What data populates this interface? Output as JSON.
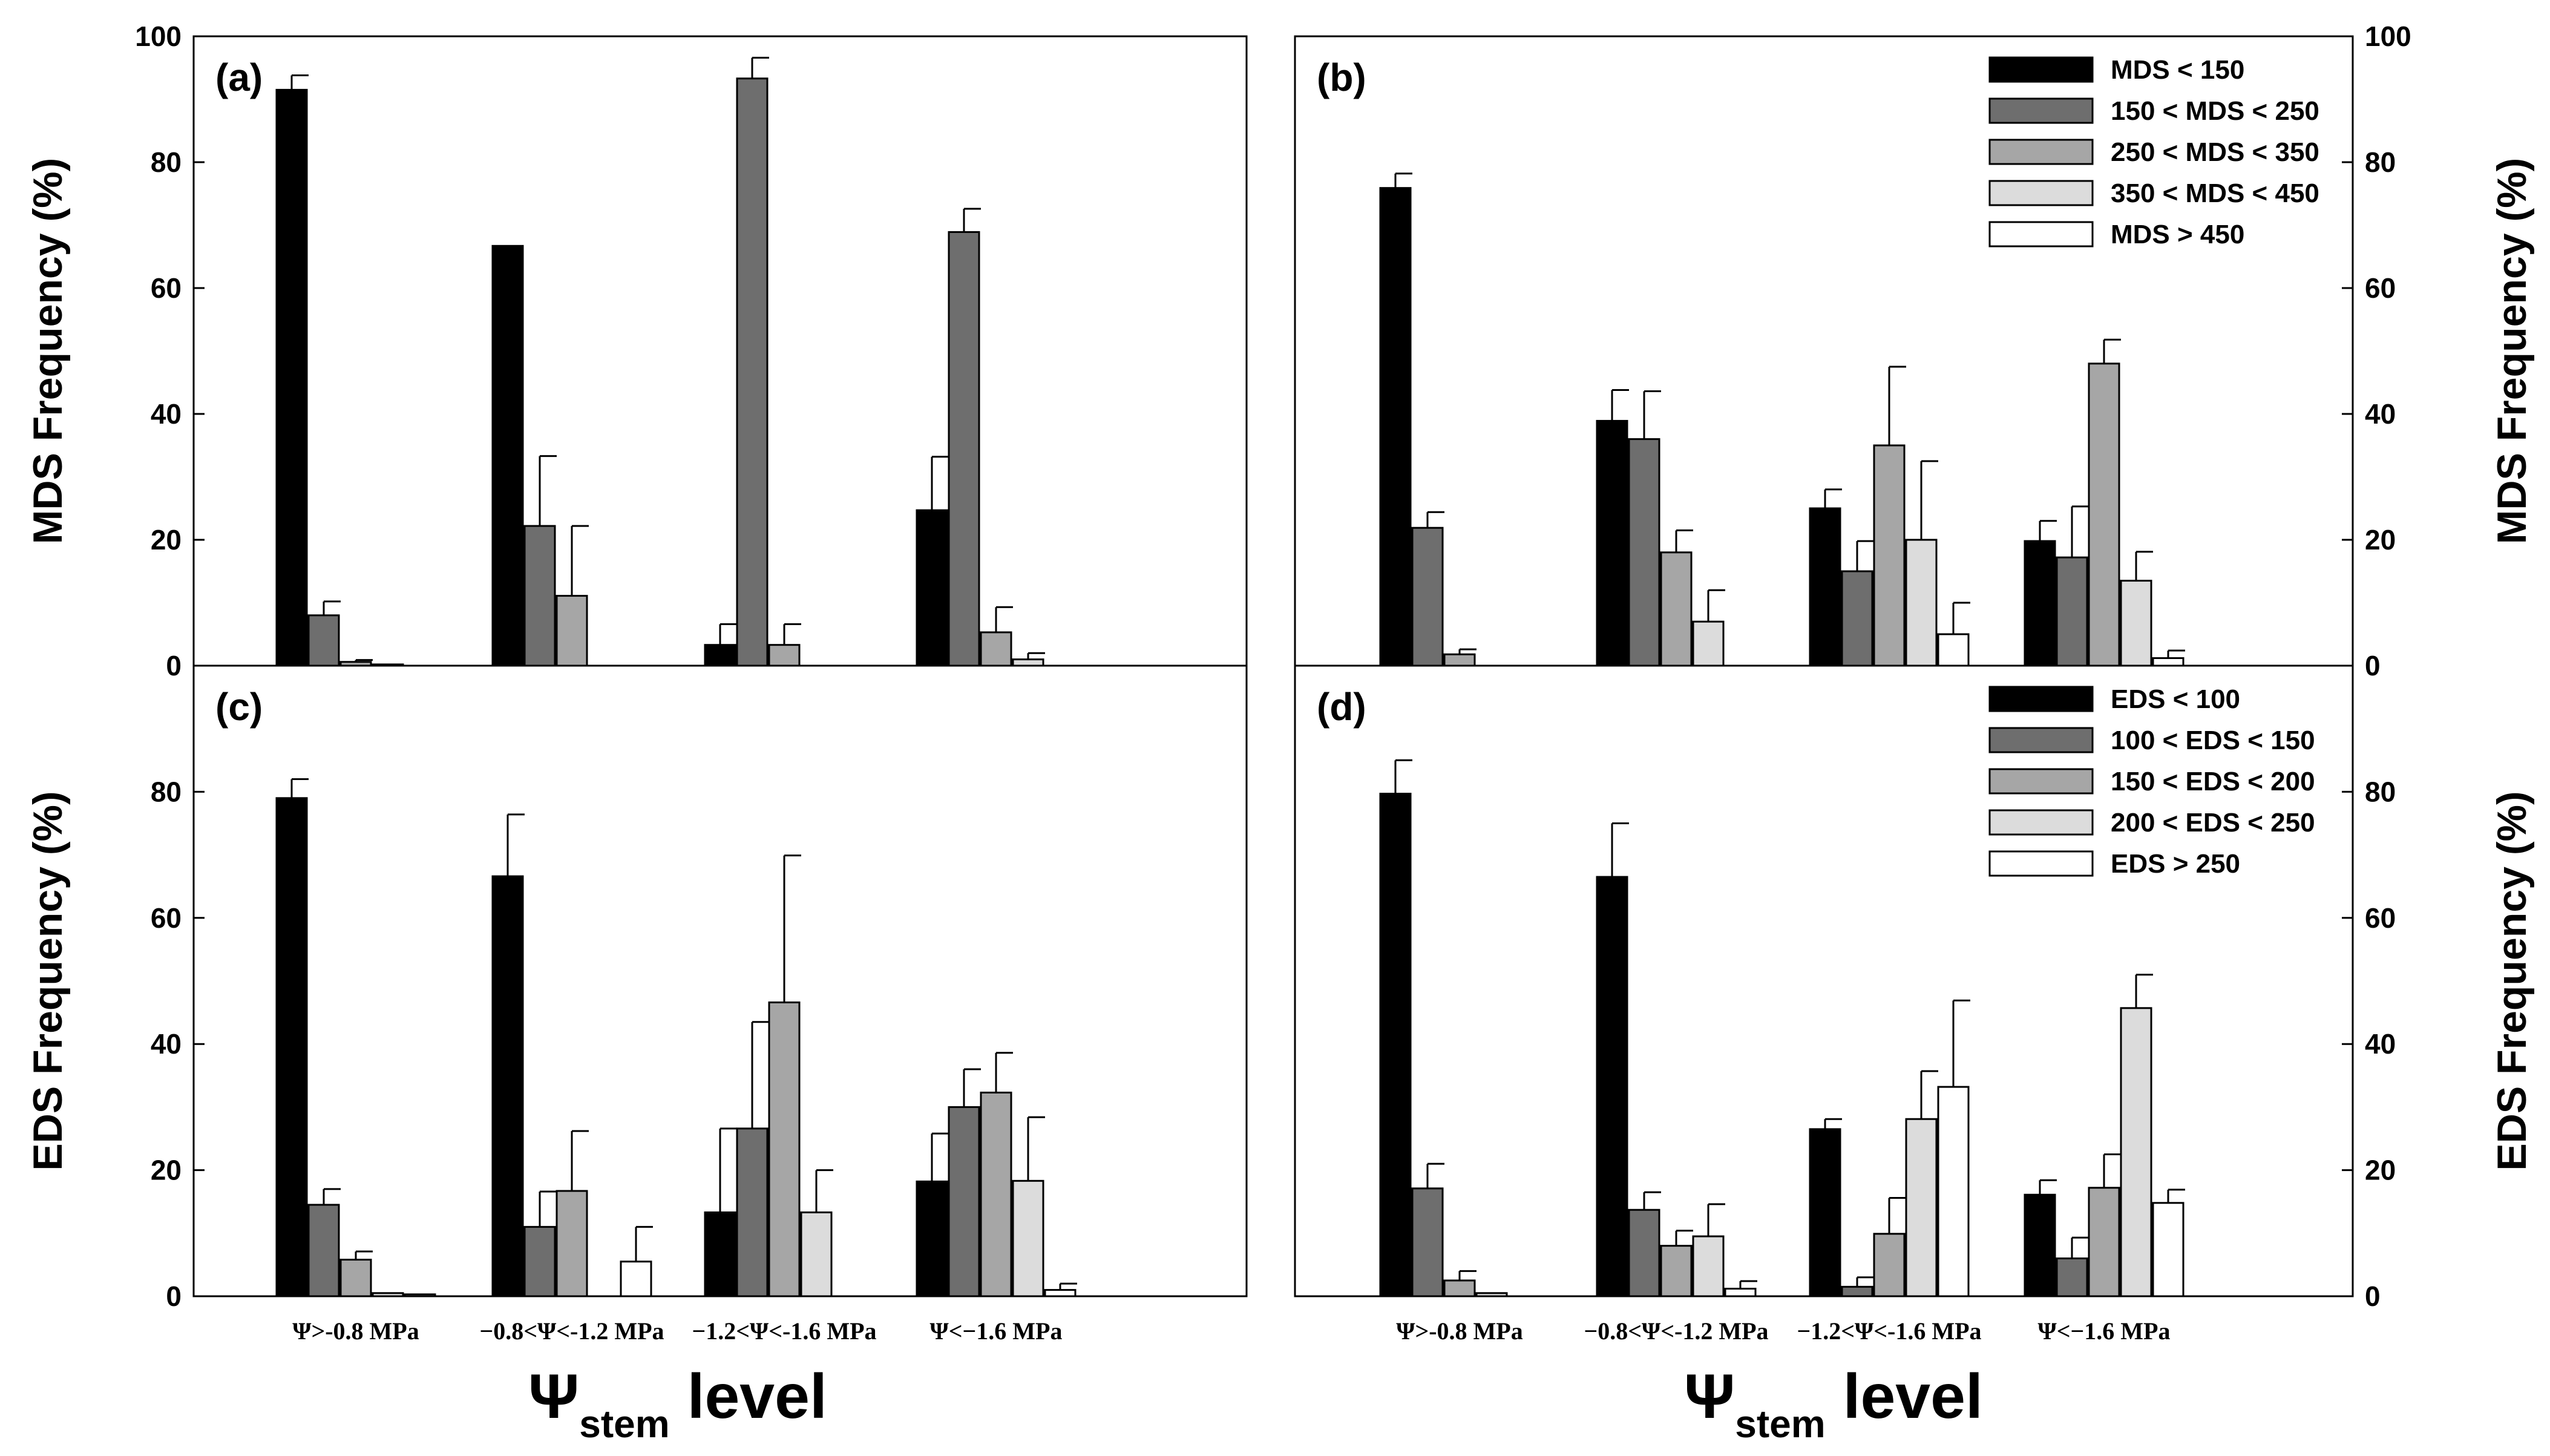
{
  "figure": {
    "x_title_symbol": "Ψ",
    "x_title_sub": "stem",
    "x_title_rest": " level",
    "categories": [
      "Ψ>-0.8 MPa",
      "−0.8<Ψ<-1.2 MPa",
      "−1.2<Ψ<-1.6 MPa",
      "Ψ<−1.6 MPa"
    ],
    "y_ticks_top": [
      "0",
      "20",
      "40",
      "60",
      "80",
      "100"
    ],
    "y_ticks_bottom": [
      "0",
      "20",
      "40",
      "60",
      "80"
    ],
    "colors": [
      "#000000",
      "#6e6e6e",
      "#a6a6a6",
      "#dcdcdc",
      "#ffffff"
    ]
  },
  "chart_data": [
    {
      "panel": "(a)",
      "type": "bar",
      "ylabel": "MDS Frequency (%)",
      "ylim": [
        0,
        100
      ],
      "categories": [
        "Ψ>-0.8 MPa",
        "−0.8<Ψ<-1.2 MPa",
        "−1.2<Ψ<-1.6 MPa",
        "Ψ<−1.6 MPa"
      ],
      "series": [
        {
          "name": "MDS < 150",
          "values": [
            91.5,
            66.7,
            3.3,
            24.7
          ],
          "errors": [
            2.3,
            0,
            3.3,
            8.5
          ]
        },
        {
          "name": "150 < MDS < 250",
          "values": [
            8.0,
            22.2,
            93.3,
            68.9
          ],
          "errors": [
            2.2,
            11.1,
            3.3,
            3.7
          ]
        },
        {
          "name": "250 < MDS < 350",
          "values": [
            0.6,
            11.1,
            3.3,
            5.3
          ],
          "errors": [
            0.3,
            11.1,
            3.3,
            4.0
          ]
        },
        {
          "name": "350 < MDS < 450",
          "values": [
            0.2,
            0,
            0,
            1.0
          ],
          "errors": [
            0,
            0,
            0,
            1.0
          ]
        },
        {
          "name": "MDS > 450",
          "values": [
            0,
            0,
            0,
            0
          ],
          "errors": [
            0,
            0,
            0,
            0
          ]
        }
      ]
    },
    {
      "panel": "(b)",
      "type": "bar",
      "ylabel": "MDS Frequency (%)",
      "ylim": [
        0,
        100
      ],
      "legend": [
        "MDS < 150",
        "150 < MDS < 250",
        "250 < MDS < 350",
        "350 < MDS < 450",
        "MDS > 450"
      ],
      "categories": [
        "Ψ>-0.8 MPa",
        "−0.8<Ψ<-1.2 MPa",
        "−1.2<Ψ<-1.6 MPa",
        "Ψ<−1.6 MPa"
      ],
      "series": [
        {
          "name": "MDS < 150",
          "values": [
            75.9,
            38.9,
            25.0,
            19.8
          ],
          "errors": [
            2.3,
            4.9,
            3.0,
            3.2
          ]
        },
        {
          "name": "150 < MDS < 250",
          "values": [
            21.9,
            36.0,
            15.0,
            17.2
          ],
          "errors": [
            2.5,
            7.6,
            4.8,
            8.1
          ]
        },
        {
          "name": "250 < MDS < 350",
          "values": [
            1.8,
            18.0,
            35.0,
            48.0
          ],
          "errors": [
            0.8,
            3.5,
            12.5,
            3.8
          ]
        },
        {
          "name": "350 < MDS < 450",
          "values": [
            0,
            7.0,
            20.0,
            13.5
          ],
          "errors": [
            0,
            5.0,
            12.5,
            4.6
          ]
        },
        {
          "name": "MDS > 450",
          "values": [
            0,
            0,
            5.0,
            1.2
          ],
          "errors": [
            0,
            0,
            5.0,
            1.2
          ]
        }
      ]
    },
    {
      "panel": "(c)",
      "type": "bar",
      "ylabel": "EDS Frequency (%)",
      "ylim": [
        0,
        100
      ],
      "categories": [
        "Ψ>-0.8 MPa",
        "−0.8<Ψ<-1.2 MPa",
        "−1.2<Ψ<-1.6 MPa",
        "Ψ<−1.6 MPa"
      ],
      "series": [
        {
          "name": "EDS < 100",
          "values": [
            79.0,
            66.6,
            13.3,
            18.2
          ],
          "errors": [
            3.0,
            9.8,
            13.3,
            7.6
          ]
        },
        {
          "name": "100 < EDS < 150",
          "values": [
            14.5,
            11.0,
            26.6,
            30.0
          ],
          "errors": [
            2.5,
            5.6,
            16.9,
            6.0
          ]
        },
        {
          "name": "150 < EDS < 200",
          "values": [
            5.8,
            16.7,
            46.6,
            32.3
          ],
          "errors": [
            1.3,
            9.5,
            23.3,
            6.3
          ]
        },
        {
          "name": "200 < EDS < 250",
          "values": [
            0.5,
            0,
            13.3,
            18.3
          ],
          "errors": [
            0,
            0,
            6.7,
            10.1
          ]
        },
        {
          "name": "EDS > 250",
          "values": [
            0.3,
            5.5,
            0,
            1.0
          ],
          "errors": [
            0,
            5.5,
            0,
            1.0
          ]
        }
      ]
    },
    {
      "panel": "(d)",
      "type": "bar",
      "ylabel": "EDS Frequency (%)",
      "ylim": [
        0,
        100
      ],
      "legend": [
        "EDS < 100",
        "100 < EDS < 150",
        "150 < EDS < 200",
        "200 < EDS < 250",
        "EDS > 250"
      ],
      "categories": [
        "Ψ>-0.8 MPa",
        "−0.8<Ψ<-1.2 MPa",
        "−1.2<Ψ<-1.6 MPa",
        "Ψ<−1.6 MPa"
      ],
      "series": [
        {
          "name": "EDS < 100",
          "values": [
            79.7,
            66.5,
            26.5,
            16.1
          ],
          "errors": [
            5.3,
            8.5,
            1.6,
            2.3
          ]
        },
        {
          "name": "100 < EDS < 150",
          "values": [
            17.1,
            13.7,
            1.5,
            6.0
          ],
          "errors": [
            3.9,
            2.8,
            1.5,
            3.3
          ]
        },
        {
          "name": "150 < EDS < 200",
          "values": [
            2.5,
            8.0,
            9.9,
            17.2
          ],
          "errors": [
            1.5,
            2.4,
            5.7,
            5.3
          ]
        },
        {
          "name": "200 < EDS < 250",
          "values": [
            0.5,
            9.5,
            28.1,
            45.7
          ],
          "errors": [
            0,
            5.1,
            7.6,
            5.3
          ]
        },
        {
          "name": "EDS > 250",
          "values": [
            0,
            1.2,
            33.2,
            14.8
          ],
          "errors": [
            0,
            1.2,
            13.7,
            2.1
          ]
        }
      ]
    }
  ]
}
